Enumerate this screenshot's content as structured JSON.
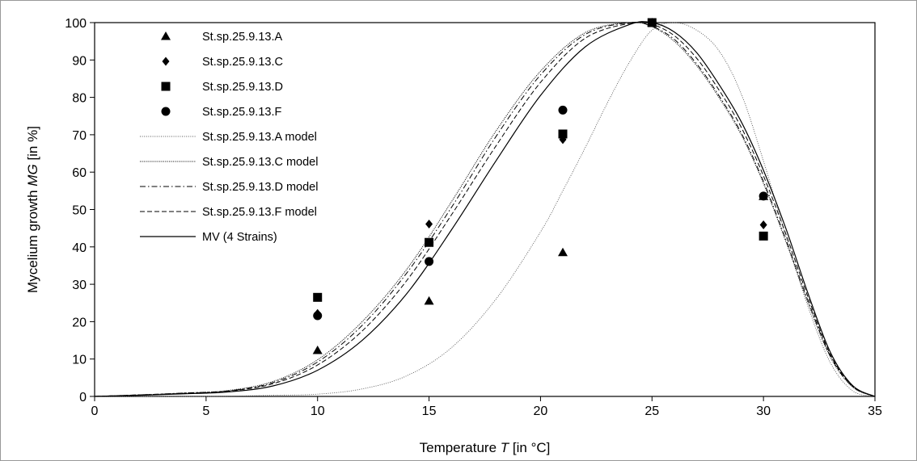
{
  "chart_data": {
    "type": "scatter",
    "xlabel_parts": [
      "Temperature ",
      "T",
      " [in °C]"
    ],
    "ylabel_parts": [
      "Mycelium growth ",
      "MG",
      " [in %]"
    ],
    "xlim": [
      0,
      35
    ],
    "ylim": [
      0,
      100
    ],
    "x_ticks": [
      0,
      5,
      10,
      15,
      20,
      25,
      30,
      35
    ],
    "y_ticks": [
      0,
      10,
      20,
      30,
      40,
      50,
      60,
      70,
      80,
      90,
      100
    ],
    "grid": false,
    "legend_position": "top-left",
    "points_series": [
      {
        "name": "St.sp.25.9.13.A",
        "marker": "triangle",
        "x": [
          10,
          15,
          21,
          25,
          30
        ],
        "y": [
          12.3,
          25.5,
          38.5,
          100,
          53.5
        ]
      },
      {
        "name": "St.sp.25.9.13.C",
        "marker": "diamond",
        "x": [
          10,
          15,
          21,
          25,
          30
        ],
        "y": [
          22.2,
          46.1,
          68.7,
          100,
          45.9
        ]
      },
      {
        "name": "St.sp.25.9.13.D",
        "marker": "square",
        "x": [
          10,
          15,
          21,
          25,
          30
        ],
        "y": [
          26.5,
          41.2,
          70.2,
          100,
          42.9
        ]
      },
      {
        "name": "St.sp.25.9.13.F",
        "marker": "circle",
        "x": [
          10,
          15,
          21,
          25,
          30
        ],
        "y": [
          21.6,
          36.1,
          76.6,
          100,
          53.6
        ]
      }
    ],
    "model_series": [
      {
        "name": "St.sp.25.9.13.A model",
        "style": "dotted-fine",
        "x": [
          0,
          5,
          8,
          10,
          12,
          14,
          16,
          18,
          20,
          21,
          22,
          23,
          24,
          25,
          26,
          27,
          28,
          29,
          30,
          31,
          32,
          33,
          34,
          35
        ],
        "y": [
          0,
          0,
          0.3,
          0.6,
          2,
          5.5,
          13,
          26,
          44,
          55,
          66.5,
          78.5,
          89.5,
          98,
          100,
          98,
          92.5,
          81,
          63,
          43,
          24,
          9,
          1.5,
          0
        ]
      },
      {
        "name": "St.sp.25.9.13.C model",
        "style": "dotted",
        "x": [
          0,
          2,
          4,
          6,
          8,
          10,
          12,
          14,
          16,
          18,
          20,
          22,
          24,
          25,
          26,
          27,
          28,
          29,
          30,
          31,
          32,
          33,
          34,
          35
        ],
        "y": [
          0,
          0.4,
          0.9,
          1.6,
          4,
          9.8,
          20,
          34,
          52,
          71,
          87,
          97.3,
          100,
          98.9,
          95,
          88.5,
          80,
          70,
          57,
          41.5,
          25,
          10.5,
          2.5,
          0
        ]
      },
      {
        "name": "St.sp.25.9.13.D model",
        "style": "dashdot",
        "x": [
          0,
          2,
          4,
          6,
          8,
          10,
          12,
          14,
          16,
          18,
          20,
          22,
          24,
          25,
          26,
          27,
          28,
          29,
          30,
          31,
          32,
          33,
          34,
          35
        ],
        "y": [
          0,
          0.4,
          0.9,
          1.5,
          3.7,
          9.2,
          19,
          33,
          50.5,
          69.5,
          86,
          96.8,
          100,
          99,
          95.5,
          89,
          80.5,
          70.5,
          57.5,
          42,
          25.5,
          10.8,
          2.6,
          0
        ]
      },
      {
        "name": "St.sp.25.9.13.F model",
        "style": "dashed",
        "x": [
          0,
          2,
          4,
          6,
          8,
          10,
          12,
          14,
          16,
          18,
          20,
          22,
          24,
          25,
          26,
          27,
          28,
          29,
          30,
          31,
          32,
          33,
          34,
          35
        ],
        "y": [
          0,
          0.4,
          0.8,
          1.4,
          3.4,
          8.4,
          17.5,
          31,
          48.5,
          67,
          84,
          95.8,
          99.8,
          99.5,
          96.5,
          90.5,
          82,
          72,
          59,
          43.5,
          26.5,
          11.2,
          2.7,
          0
        ]
      },
      {
        "name": "MV (4 Strains)",
        "style": "solid",
        "x": [
          0,
          2,
          4,
          6,
          8,
          10,
          12,
          14,
          16,
          18,
          20,
          22,
          24,
          25,
          26,
          27,
          28,
          29,
          30,
          31,
          32,
          33,
          34,
          35
        ],
        "y": [
          0,
          0.3,
          0.7,
          1.2,
          2.8,
          7,
          15,
          27.5,
          44.5,
          63,
          80.5,
          93.5,
          99.5,
          100,
          97.5,
          92,
          83.5,
          73.5,
          60.5,
          45,
          27.5,
          11.8,
          2.9,
          0
        ]
      }
    ]
  }
}
